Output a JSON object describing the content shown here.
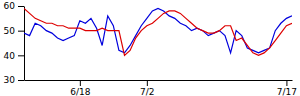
{
  "chart_data": {
    "type": "line",
    "categories": [
      null,
      null,
      null,
      null,
      null,
      null,
      null,
      null,
      null,
      null,
      "6/18",
      null,
      null,
      null,
      null,
      null,
      null,
      null,
      null,
      null,
      null,
      null,
      "7/2",
      null,
      null,
      null,
      null,
      null,
      null,
      null,
      null,
      null,
      null,
      null,
      null,
      null,
      null,
      null,
      null,
      null,
      null,
      null,
      null,
      null,
      null,
      null,
      null,
      "7/17",
      null
    ],
    "series": [
      {
        "color": "#0000dd",
        "values": [
          49,
          48,
          53,
          52,
          50,
          49,
          47,
          46,
          47,
          48,
          54,
          53,
          55,
          51,
          44,
          56,
          52,
          42,
          41,
          44,
          48,
          52,
          55,
          58,
          59,
          58,
          56,
          55,
          53,
          52,
          50,
          51,
          50,
          48,
          49,
          50,
          48,
          41,
          50,
          48,
          43,
          42,
          41,
          42,
          43,
          50,
          53,
          55,
          56
        ]
      },
      {
        "color": "#dd0000",
        "values": [
          59,
          57,
          55,
          54,
          53,
          53,
          52,
          52,
          51,
          51,
          51,
          50,
          50,
          50,
          51,
          50,
          50,
          50,
          40,
          42,
          47,
          50,
          52,
          53,
          55,
          57,
          58,
          58,
          57,
          55,
          53,
          51,
          50,
          49,
          49,
          50,
          52,
          52,
          46,
          47,
          44,
          41,
          40,
          41,
          43,
          46,
          49,
          52,
          53
        ]
      }
    ],
    "ylim": [
      30,
      60
    ],
    "yticks": [
      30,
      40,
      50,
      60
    ]
  }
}
